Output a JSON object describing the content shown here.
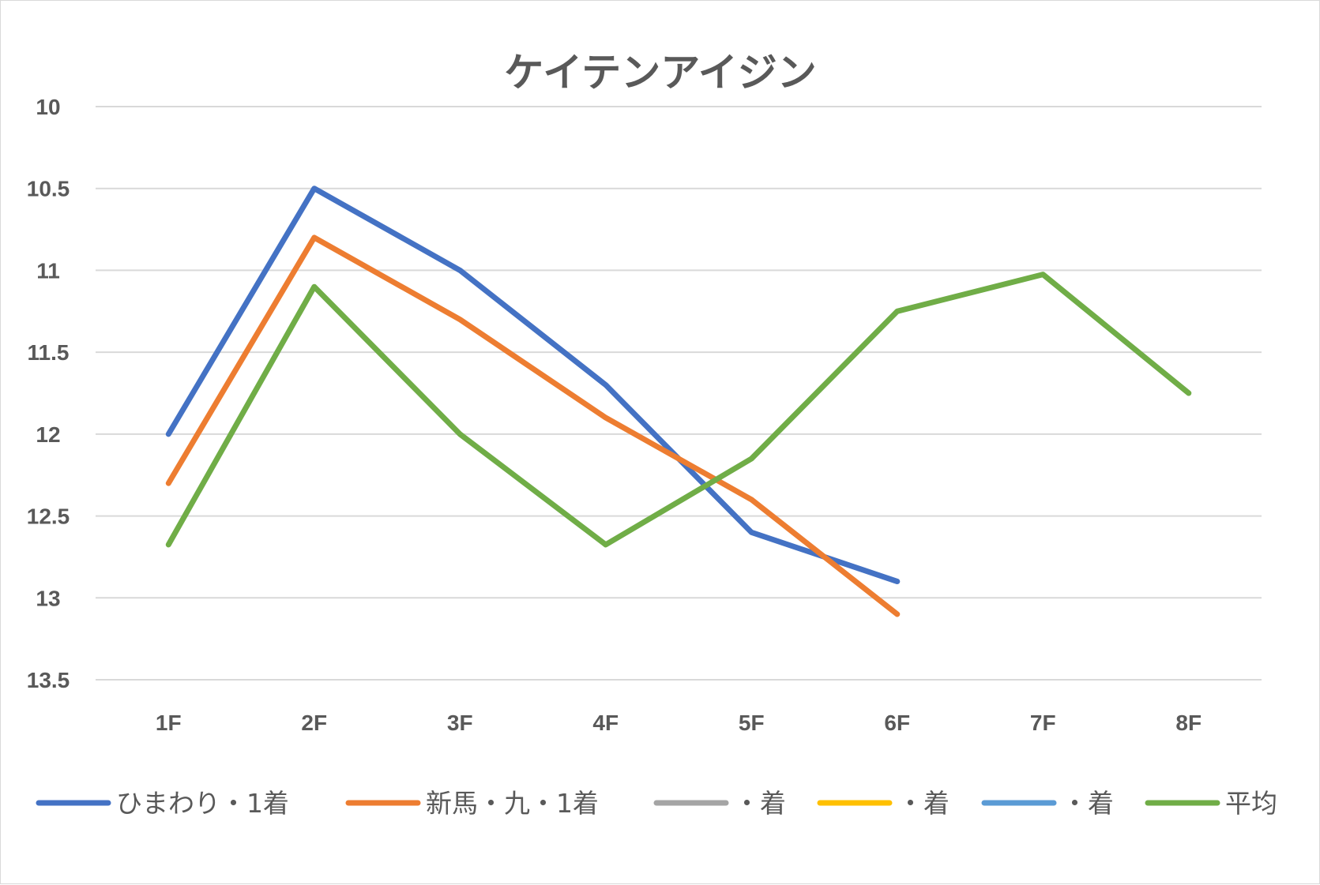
{
  "chart_data": {
    "type": "line",
    "title": "ケイテンアイジン",
    "xlabel": "",
    "ylabel": "",
    "categories": [
      "1F",
      "2F",
      "3F",
      "4F",
      "5F",
      "6F",
      "7F",
      "8F"
    ],
    "y_ticks": [
      "10",
      "10.5",
      "11",
      "11.5",
      "12",
      "12.5",
      "13",
      "13.5"
    ],
    "ylim": [
      10,
      13.5
    ],
    "y_reversed": true,
    "grid": true,
    "legend_position": "bottom",
    "series": [
      {
        "name": "ひまわり・1着",
        "color": "#4472c4",
        "values": [
          12.0,
          10.5,
          11.0,
          11.7,
          12.6,
          12.9,
          null,
          null
        ]
      },
      {
        "name": "新馬・九・1着",
        "color": "#ed7d31",
        "values": [
          12.3,
          10.8,
          11.3,
          11.9,
          12.4,
          13.1,
          null,
          null
        ]
      },
      {
        "name": "・着",
        "color": "#a5a5a5",
        "values": [
          null,
          null,
          null,
          null,
          null,
          null,
          null,
          null
        ]
      },
      {
        "name": "・着",
        "color": "#ffc000",
        "values": [
          null,
          null,
          null,
          null,
          null,
          null,
          null,
          null
        ]
      },
      {
        "name": "・着",
        "color": "#5b9bd5",
        "values": [
          null,
          null,
          null,
          null,
          null,
          null,
          null,
          null
        ]
      },
      {
        "name": "平均",
        "color": "#70ad47",
        "values": [
          12.675,
          11.1,
          12.0,
          12.675,
          12.15,
          11.25,
          11.025,
          11.75
        ]
      }
    ]
  }
}
